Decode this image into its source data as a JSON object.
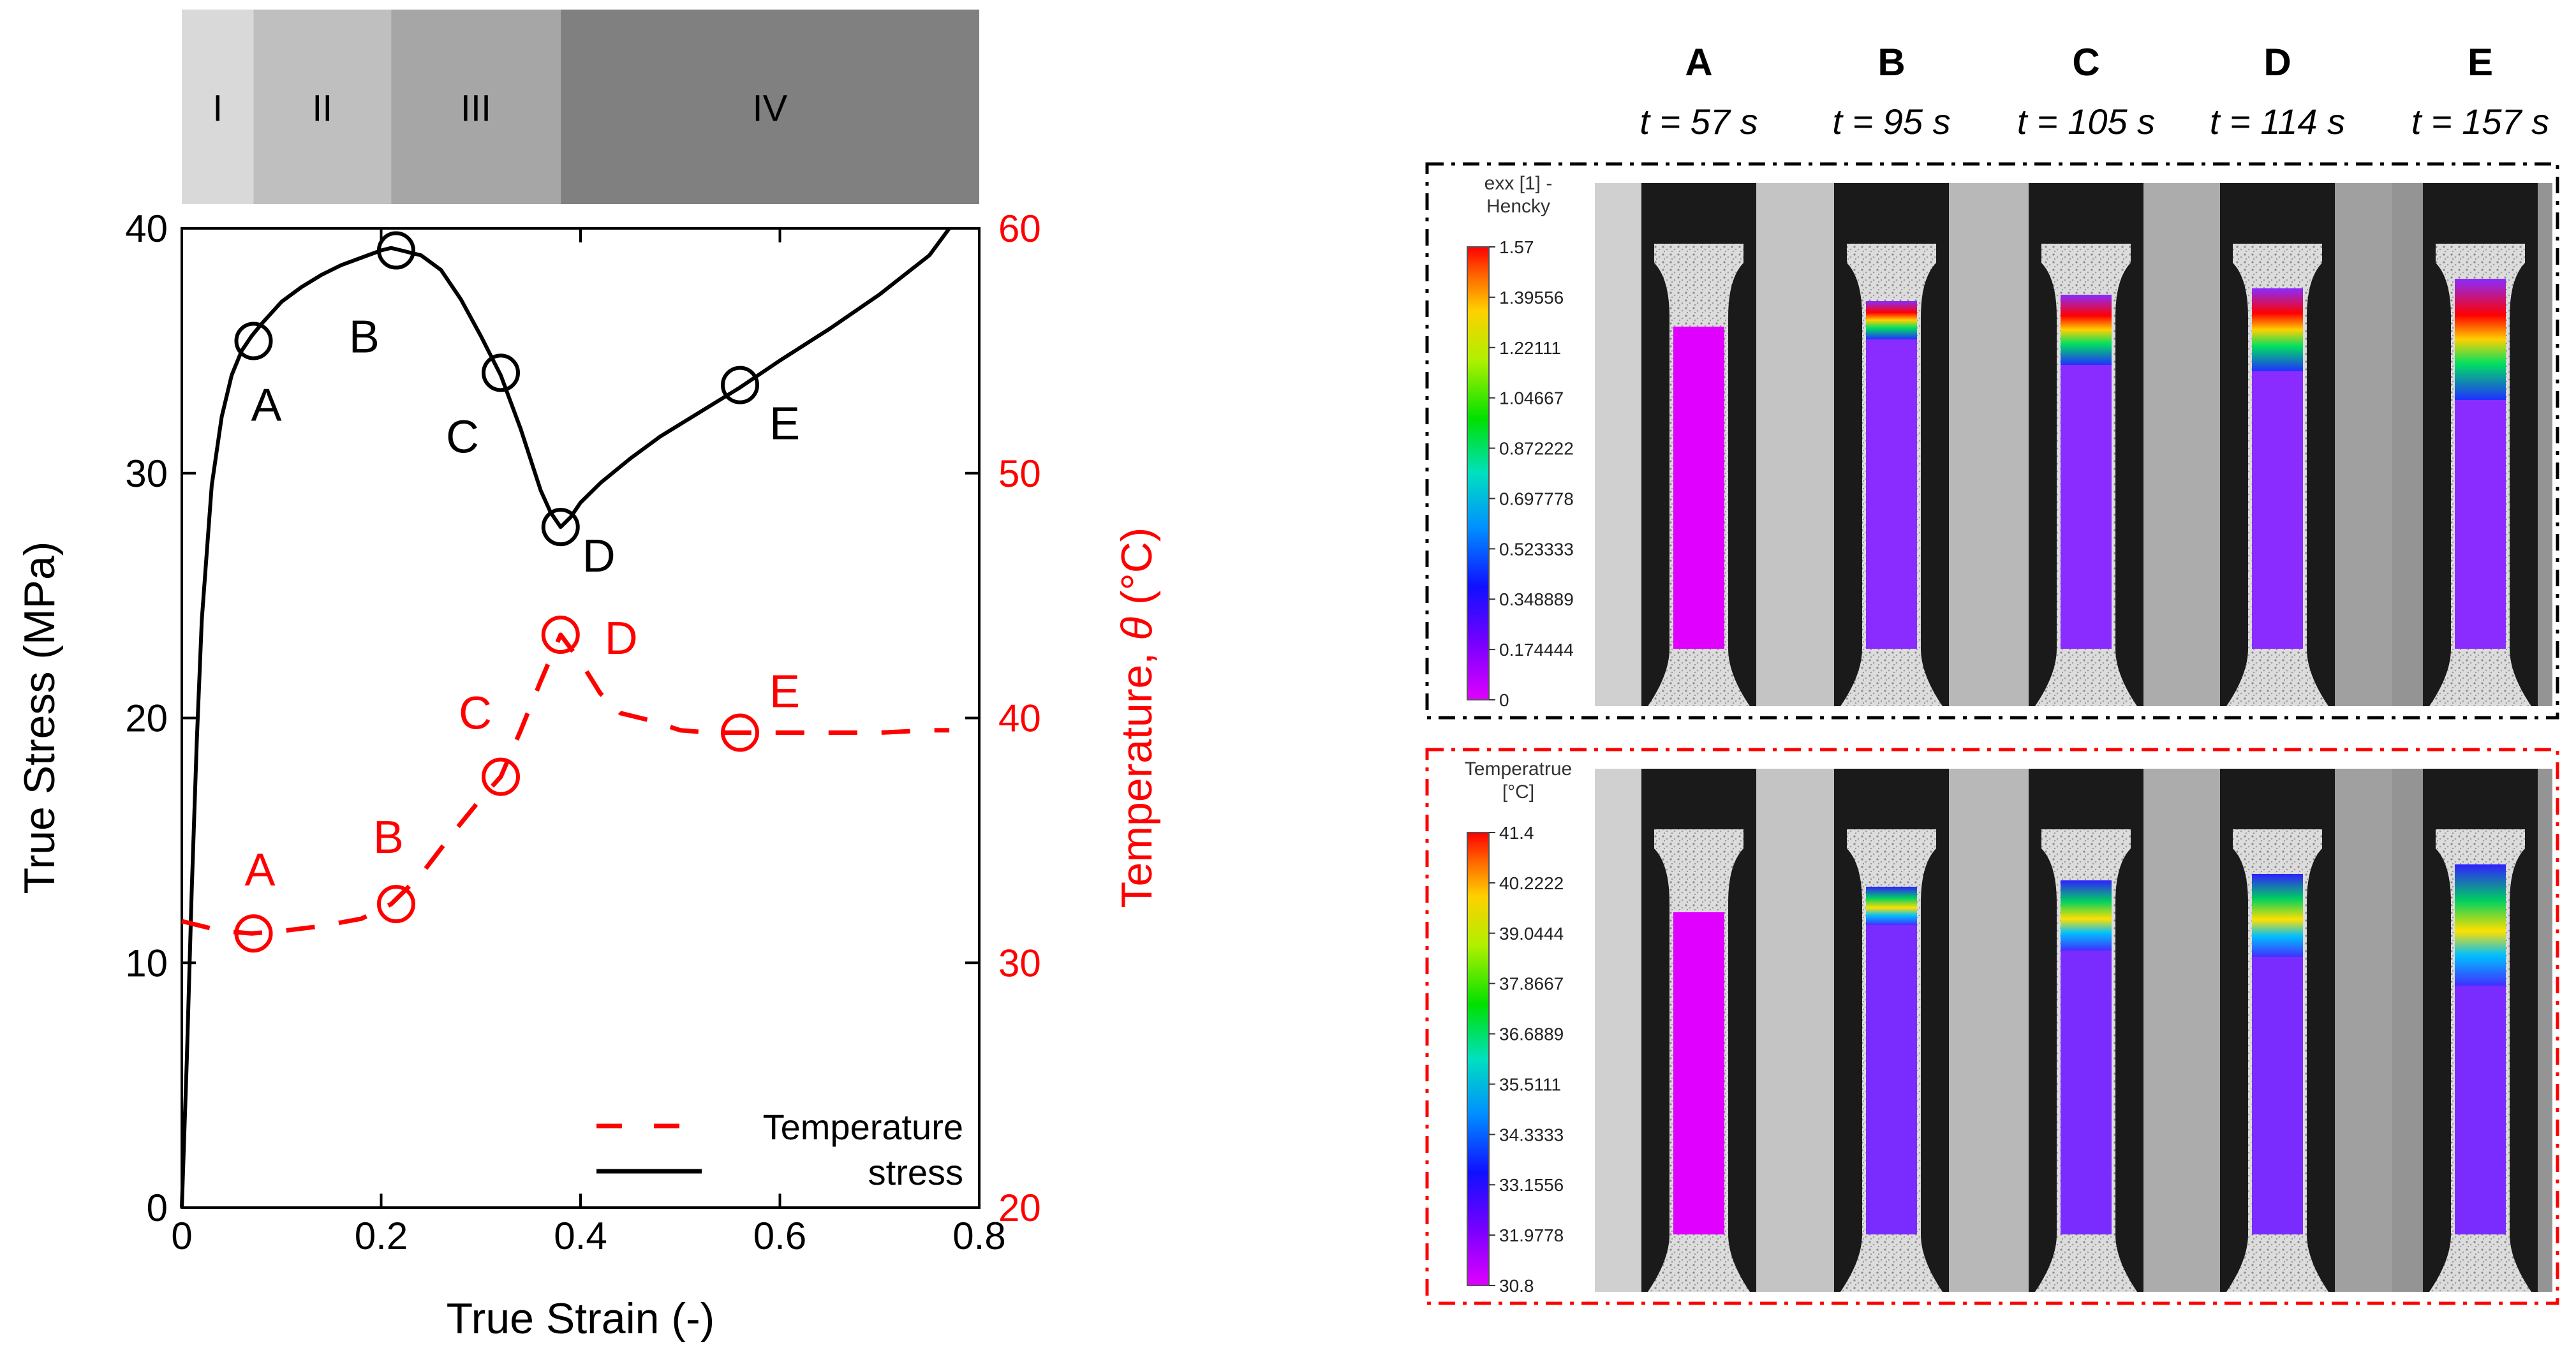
{
  "chart_data": [
    {
      "type": "line",
      "xlabel": "True Strain (-)",
      "ylabel": "True Stress (MPa)",
      "y2label_prefix": "Temperature, ",
      "y2label_symbol": "θ",
      "y2label_unit": " (°C)",
      "xlim": [
        0,
        0.8
      ],
      "ylim": [
        0,
        40
      ],
      "y2lim": [
        20,
        60
      ],
      "x_ticks": [
        "0",
        "0.2",
        "0.4",
        "0.6",
        "0.8"
      ],
      "y_ticks": [
        "0",
        "10",
        "20",
        "30",
        "40"
      ],
      "y2_ticks": [
        "20",
        "30",
        "40",
        "50",
        "60"
      ],
      "legend_position": "bottom-right",
      "regions": [
        {
          "label": "I",
          "from": 0,
          "to": 0.072,
          "color": "#d9d9d9"
        },
        {
          "label": "II",
          "from": 0.072,
          "to": 0.21,
          "color": "#bfbfbf"
        },
        {
          "label": "III",
          "from": 0.21,
          "to": 0.38,
          "color": "#a6a6a6"
        },
        {
          "label": "IV",
          "from": 0.38,
          "to": 0.8,
          "color": "#808080"
        }
      ],
      "series": [
        {
          "name": "stress",
          "axis": "left",
          "color": "#000000",
          "style": "solid",
          "x": [
            0,
            0.005,
            0.01,
            0.015,
            0.02,
            0.03,
            0.04,
            0.05,
            0.06,
            0.07,
            0.08,
            0.1,
            0.12,
            0.14,
            0.16,
            0.18,
            0.2,
            0.21,
            0.22,
            0.24,
            0.26,
            0.28,
            0.3,
            0.32,
            0.34,
            0.36,
            0.37,
            0.38,
            0.39,
            0.4,
            0.42,
            0.45,
            0.48,
            0.52,
            0.56,
            0.6,
            0.65,
            0.7,
            0.75,
            0.77
          ],
          "y": [
            0,
            6,
            13,
            19,
            24,
            29.5,
            32.3,
            34,
            35,
            35.6,
            36.1,
            37,
            37.6,
            38.1,
            38.5,
            38.8,
            39.1,
            39.2,
            39.1,
            38.9,
            38.3,
            37.1,
            35.6,
            34,
            31.8,
            29.3,
            28.4,
            27.8,
            28.2,
            28.8,
            29.6,
            30.6,
            31.5,
            32.5,
            33.5,
            34.6,
            35.9,
            37.3,
            38.9,
            40
          ]
        },
        {
          "name": "Temperature",
          "axis": "right",
          "color": "#ff0000",
          "style": "dashed",
          "x": [
            0,
            0.02,
            0.04,
            0.07,
            0.1,
            0.14,
            0.18,
            0.21,
            0.24,
            0.27,
            0.3,
            0.32,
            0.34,
            0.36,
            0.38,
            0.4,
            0.42,
            0.44,
            0.47,
            0.5,
            0.53,
            0.56,
            0.6,
            0.65,
            0.7,
            0.75,
            0.77
          ],
          "y": [
            31.7,
            31.5,
            31.3,
            31.2,
            31.3,
            31.5,
            31.8,
            32.4,
            33.6,
            35.2,
            36.7,
            37.6,
            39.5,
            41.5,
            43.4,
            42.3,
            41,
            40.2,
            39.9,
            39.5,
            39.4,
            39.4,
            39.4,
            39.4,
            39.4,
            39.5,
            39.5
          ]
        }
      ],
      "markers": [
        {
          "label": "A",
          "stress_x": 0.072,
          "stress_y": 35.4,
          "temp_x": 0.072,
          "temp_y": 31.2
        },
        {
          "label": "B",
          "stress_x": 0.215,
          "stress_y": 39.1,
          "temp_x": 0.215,
          "temp_y": 32.4
        },
        {
          "label": "C",
          "stress_x": 0.32,
          "stress_y": 34.1,
          "temp_x": 0.32,
          "temp_y": 37.6
        },
        {
          "label": "D",
          "stress_x": 0.38,
          "stress_y": 27.8,
          "temp_x": 0.38,
          "temp_y": 43.4
        },
        {
          "label": "E",
          "stress_x": 0.56,
          "stress_y": 33.6,
          "temp_x": 0.56,
          "temp_y": 39.4
        }
      ]
    },
    {
      "type": "heatmap",
      "title": "exx [1] - Hencky",
      "title_lines": [
        "exx [1] -",
        "Hencky"
      ],
      "colorbar_ticks": [
        "1.57",
        "1.39556",
        "1.22111",
        "1.04667",
        "0.872222",
        "0.697778",
        "0.523333",
        "0.348889",
        "0.174444",
        "0"
      ],
      "frames": [
        "A",
        "B",
        "C",
        "D",
        "E"
      ],
      "frame_times": [
        "t = 57 s",
        "t = 95 s",
        "t = 105 s",
        "t = 114 s",
        "t = 157 s"
      ],
      "border_color": "#000000"
    },
    {
      "type": "heatmap",
      "title": "Temperatrue [°C]",
      "title_lines": [
        "Temperatrue",
        "[°C]"
      ],
      "colorbar_ticks": [
        "41.4",
        "40.2222",
        "39.0444",
        "37.8667",
        "36.6889",
        "35.5111",
        "34.3333",
        "33.1556",
        "31.9778",
        "30.8"
      ],
      "frames": [
        "A",
        "B",
        "C",
        "D",
        "E"
      ],
      "frame_times": [
        "t = 57 s",
        "t = 95 s",
        "t = 105 s",
        "t = 114 s",
        "t = 157 s"
      ],
      "border_color": "#ff0000"
    }
  ]
}
